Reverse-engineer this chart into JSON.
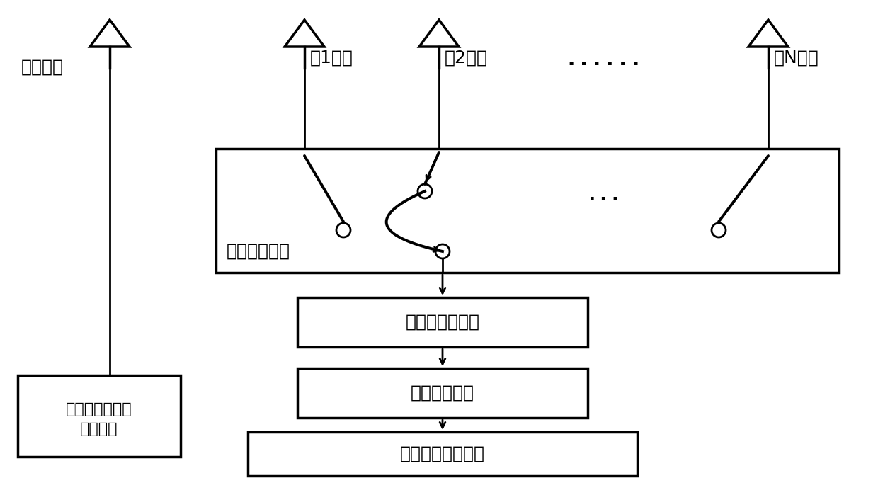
{
  "bg_color": "#ffffff",
  "line_color": "#000000",
  "text_color": "#000000",
  "labels": {
    "tx_antenna": "发射天线",
    "array1": "第1阵元",
    "array2": "第2阵元",
    "arrayN": "第N阵元",
    "rf_switch": "射频开关模块",
    "single_ch": "单通道接收模块",
    "phase_rec": "相位恢复模块",
    "radar_proc": "雷达信号处理模块",
    "fmcw_line1": "调频连续波信号",
    "fmcw_line2": "产生模块"
  },
  "fontsize_main": 18,
  "fontsize_small": 16
}
